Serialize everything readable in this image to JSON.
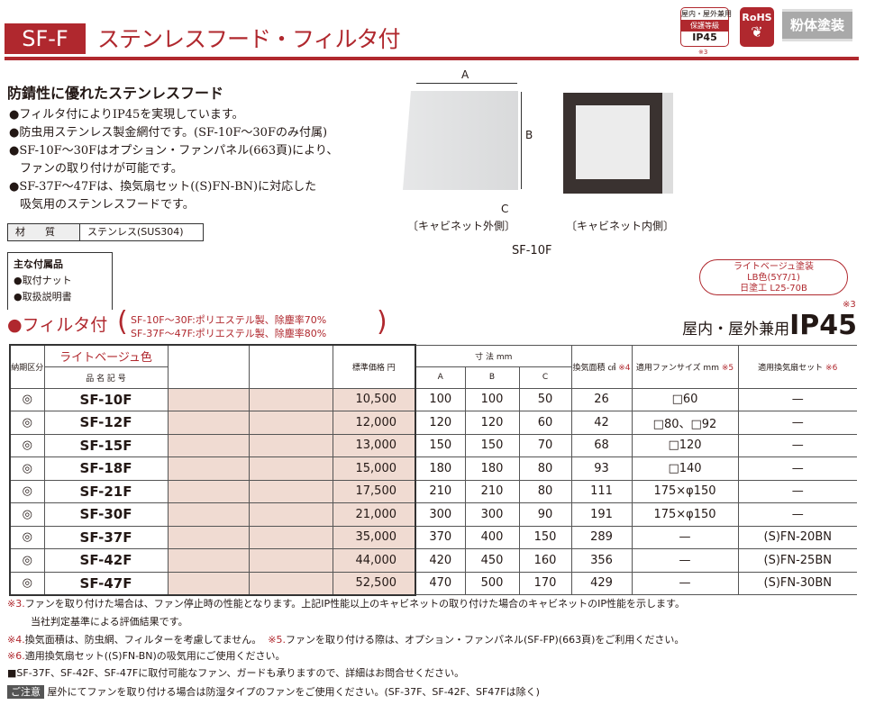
{
  "header": {
    "code": "SF-F",
    "title": "ステンレスフード・フィルタ付",
    "badge_ip": {
      "l1": "屋内・屋外兼用",
      "l2": "保護等級",
      "l3": "IP45",
      "note": "※3"
    },
    "badge_rohs": "RoHS",
    "badge_powder": "粉体塗装"
  },
  "intro": {
    "heading": "防錆性に優れたステンレスフード",
    "bullets": [
      "●フィルタ付によりIP45を実現しています。",
      "●防虫用ステンレス製金網付です。(SF-10F～30Fのみ付属)",
      "●SF-10F～30Fはオプション・ファンパネル(663頁)により、",
      "ファンの取り付けが可能です。",
      "●SF-37F～47Fは、換気扇セット((S)FN-BN)に対応した",
      "吸気用のステンレスフードです。"
    ]
  },
  "material": {
    "label": "材　　質",
    "value": "ステンレス(SUS304)"
  },
  "accessories": {
    "title": "主な付属品",
    "items": [
      "●取付ナット",
      "●取扱説明書"
    ]
  },
  "figure": {
    "dim_a": "A",
    "dim_b": "B",
    "dim_c": "C",
    "cap_out": "〔キャビネット外側〕",
    "cap_in": "〔キャビネット内側〕",
    "model": "SF-10F"
  },
  "color_pill": [
    "ライトベージュ塗装",
    "LB色(5Y7/1)",
    "日塗工 L25-70B"
  ],
  "section": {
    "title": "●フィルタ付",
    "note1": "SF-10F～30F:ポリエステル製、除塵率70%",
    "note2": "SF-37F～47F:ポリエステル製、除塵率80%",
    "ip_label": "屋内・屋外兼用",
    "ip": "IP45",
    "ip_note": "※3"
  },
  "table": {
    "h_delivery": "納期区分",
    "h_color": "ライトベージュ色",
    "h_name": "品 名 記 号",
    "h_price": "標準価格 円",
    "h_dim": "寸 法 mm",
    "h_a": "A",
    "h_b": "B",
    "h_c": "C",
    "h_area": "換気面積 ㎠",
    "h_area_note": "※4",
    "h_fan": "適用ファンサイズ mm",
    "h_fan_note": "※5",
    "h_set": "適用換気扇セット",
    "h_set_note": "※6",
    "rows": [
      {
        "d": "◎",
        "name": "SF-10F",
        "price": "10,500",
        "a": "100",
        "b": "100",
        "c": "50",
        "area": "26",
        "fan": "□60",
        "set": "—"
      },
      {
        "d": "◎",
        "name": "SF-12F",
        "price": "12,000",
        "a": "120",
        "b": "120",
        "c": "60",
        "area": "42",
        "fan": "□80、□92",
        "set": "—"
      },
      {
        "d": "◎",
        "name": "SF-15F",
        "price": "13,000",
        "a": "150",
        "b": "150",
        "c": "70",
        "area": "68",
        "fan": "□120",
        "set": "—"
      },
      {
        "d": "◎",
        "name": "SF-18F",
        "price": "15,000",
        "a": "180",
        "b": "180",
        "c": "80",
        "area": "93",
        "fan": "□140",
        "set": "—"
      },
      {
        "d": "◎",
        "name": "SF-21F",
        "price": "17,500",
        "a": "210",
        "b": "210",
        "c": "80",
        "area": "111",
        "fan": "175×φ150",
        "set": "—"
      },
      {
        "d": "◎",
        "name": "SF-30F",
        "price": "21,000",
        "a": "300",
        "b": "300",
        "c": "90",
        "area": "191",
        "fan": "175×φ150",
        "set": "—"
      },
      {
        "d": "◎",
        "name": "SF-37F",
        "price": "35,000",
        "a": "370",
        "b": "400",
        "c": "150",
        "area": "289",
        "fan": "—",
        "set": "(S)FN-20BN"
      },
      {
        "d": "◎",
        "name": "SF-42F",
        "price": "44,000",
        "a": "420",
        "b": "450",
        "c": "160",
        "area": "356",
        "fan": "—",
        "set": "(S)FN-25BN"
      },
      {
        "d": "◎",
        "name": "SF-47F",
        "price": "52,500",
        "a": "470",
        "b": "500",
        "c": "170",
        "area": "429",
        "fan": "—",
        "set": "(S)FN-30BN"
      }
    ]
  },
  "notes": {
    "n3m": "※3.",
    "n3": "ファンを取り付けた場合は、ファン停止時の性能となります。上記IP性能以上のキャビネットの取り付けた場合のキャビネットのIP性能を示します。",
    "n3b": "当社判定基準による評価結果です。",
    "n4m": "※4.",
    "n4": "換気面積は、防虫網、フィルターを考慮してません。",
    "n5m": "※5.",
    "n5": "ファンを取り付ける際は、オプション・ファンパネル(SF-FP)(663頁)をご利用ください。",
    "n6m": "※6.",
    "n6": "適用換気扇セット((S)FN-BN)の吸気用にご使用ください。",
    "n7": "■SF-37F、SF-42F、SF-47Fに取付可能なファン、ガードも承りますので、詳細はお問合せください。",
    "caution_label": "ご注意",
    "caution": "屋外にてファンを取り付ける場合は防湿タイプのファンをご使用ください。(SF-37F、SF-42F、SF47Fは除く)"
  },
  "colors": {
    "brand": "#b0282e",
    "shade": "#f0dbd2"
  }
}
